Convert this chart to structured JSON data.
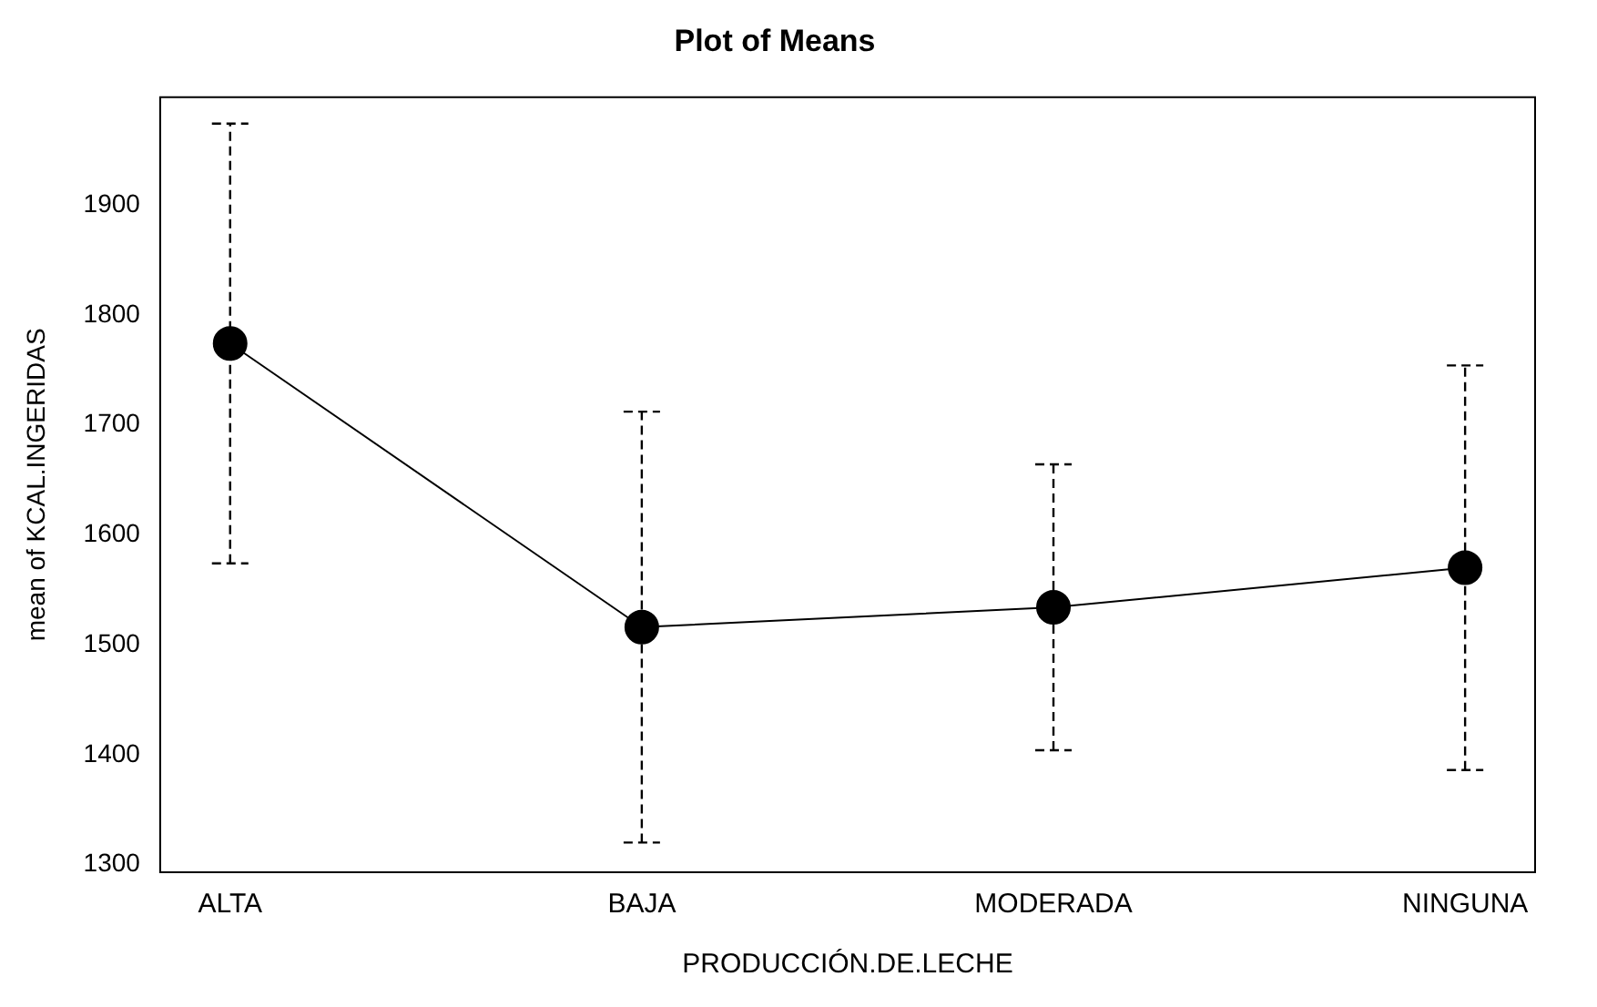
{
  "chart_data": {
    "type": "line",
    "title": "Plot of Means",
    "xlabel": "PRODUCCIÓN.DE.LECHE",
    "ylabel": "mean of KCAL.INGERIDAS",
    "categories": [
      "ALTA",
      "BAJA",
      "MODERADA",
      "NINGUNA"
    ],
    "values": [
      1774,
      1516,
      1534,
      1570
    ],
    "errors": [
      200,
      196,
      130,
      184
    ],
    "color": "#000000",
    "marker": "circle",
    "line_style": "solid",
    "ylim": [
      1293,
      1998
    ],
    "yticks": [
      1300,
      1400,
      1500,
      1600,
      1700,
      1800,
      1900
    ],
    "grid": false,
    "legend": false
  }
}
